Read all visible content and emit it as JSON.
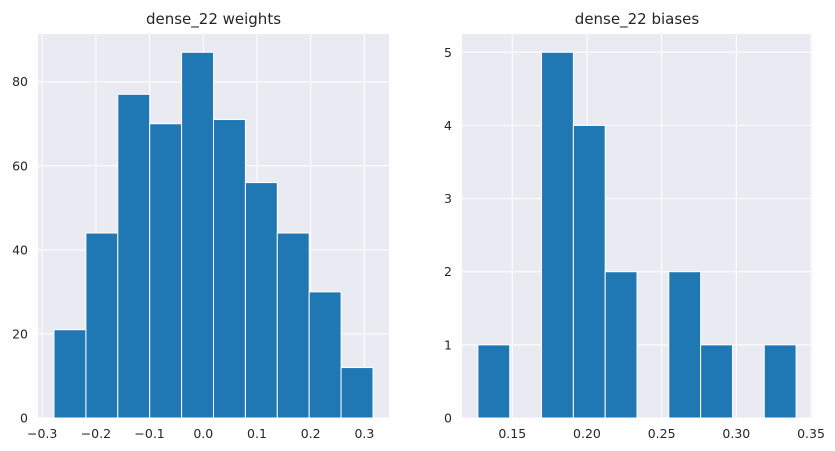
{
  "chart_data": [
    {
      "type": "bar",
      "title": "dense_22 weights",
      "xlabel": "",
      "ylabel": "",
      "bin_edges": [
        -0.278,
        -0.2186,
        -0.1592,
        -0.0998,
        -0.0404,
        0.019,
        0.0784,
        0.1378,
        0.1972,
        0.2566,
        0.316
      ],
      "values": [
        21,
        44,
        77,
        70,
        87,
        71,
        56,
        44,
        30,
        12
      ],
      "xlim": [
        -0.3078,
        0.3458
      ],
      "ylim": [
        0,
        91.35
      ],
      "xticks": [
        -0.3,
        -0.2,
        -0.1,
        0.0,
        0.1,
        0.2,
        0.3
      ],
      "xtick_labels": [
        "−0.3",
        "−0.2",
        "−0.1",
        "0.0",
        "0.1",
        "0.2",
        "0.3"
      ],
      "yticks": [
        0,
        20,
        40,
        60,
        80
      ],
      "ytick_labels": [
        "0",
        "20",
        "40",
        "60",
        "80"
      ],
      "grid": true,
      "colors": {
        "bar": "#1f77b4",
        "background": "#eaeaf2",
        "grid": "#ffffff",
        "edge": "#ffffff"
      }
    },
    {
      "type": "bar",
      "title": "dense_22 biases",
      "xlabel": "",
      "ylabel": "",
      "bin_edges": [
        0.127,
        0.1483,
        0.1696,
        0.1909,
        0.2122,
        0.2335,
        0.2548,
        0.2761,
        0.2974,
        0.3187,
        0.34
      ],
      "values": [
        1,
        0,
        5,
        4,
        2,
        0,
        2,
        1,
        0,
        1
      ],
      "xlim": [
        0.11635,
        0.35065
      ],
      "ylim": [
        0,
        5.25
      ],
      "xticks": [
        0.15,
        0.2,
        0.25,
        0.3,
        0.35
      ],
      "xtick_labels": [
        "0.15",
        "0.20",
        "0.25",
        "0.30",
        "0.35"
      ],
      "yticks": [
        0,
        1,
        2,
        3,
        4,
        5
      ],
      "ytick_labels": [
        "0",
        "1",
        "2",
        "3",
        "4",
        "5"
      ],
      "grid": true,
      "colors": {
        "bar": "#1f77b4",
        "background": "#eaeaf2",
        "grid": "#ffffff",
        "edge": "#ffffff"
      }
    }
  ]
}
